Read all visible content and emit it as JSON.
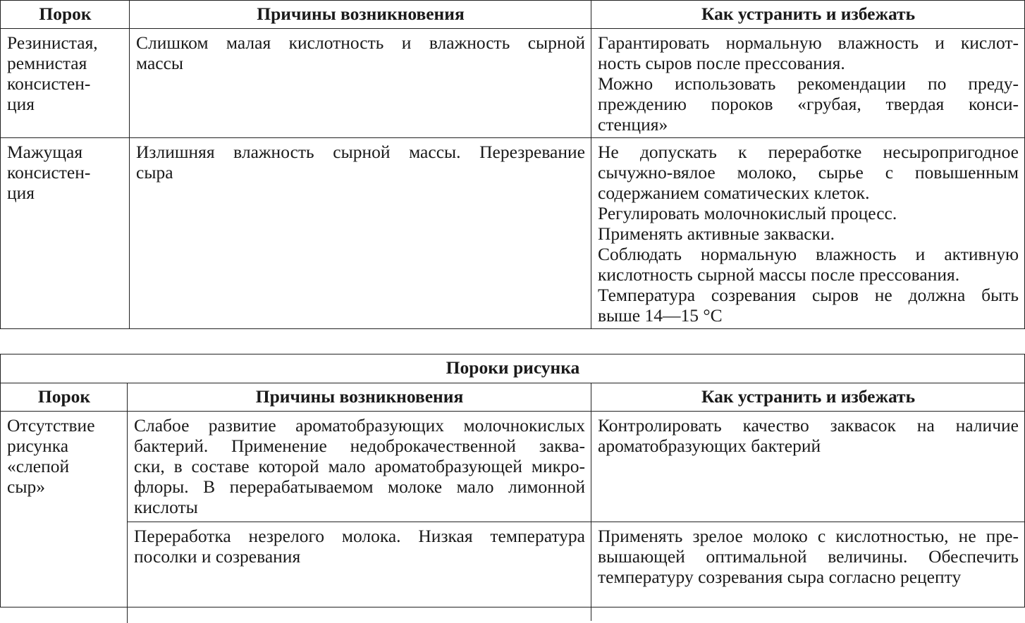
{
  "table1": {
    "headers": [
      "Порок",
      "Причины возникновения",
      "Как устранить и избежать"
    ],
    "rows": [
      {
        "defect": [
          [
            "Резинистая,"
          ],
          [
            "ремнистая"
          ],
          [
            "консистен-"
          ],
          [
            "ция"
          ]
        ],
        "causes": [
          [
            "Слишком малая кислотность и влажность сырной",
            "массы"
          ]
        ],
        "remedy": [
          [
            "Гарантировать нормальную влажность и кислот-",
            "ность сыров после прессования."
          ],
          [
            "Можно использовать рекомендации по преду-",
            "преждению пороков «грубая, твердая конси-",
            "стенция»"
          ]
        ]
      },
      {
        "defect": [
          [
            "Мажущая"
          ],
          [
            "консистен-"
          ],
          [
            "ция"
          ]
        ],
        "causes": [
          [
            "Излишняя влажность сырной массы. Перезревание",
            "сыра"
          ]
        ],
        "remedy": [
          [
            "Не допускать к переработке несыропригодное",
            "сычужно-вялое молоко, сырье с повышенным",
            "содержанием соматических клеток."
          ],
          [
            "Регулировать молочнокислый процесс."
          ],
          [
            "Применять активные закваски."
          ],
          [
            "Соблюдать нормальную влажность и активную",
            "кислотность сырной массы после прессования."
          ],
          [
            "Температура созревания сыров не должна быть",
            "выше 14—15 °C"
          ]
        ]
      }
    ]
  },
  "table2": {
    "title": "Пороки рисунка",
    "headers": [
      "Порок",
      "Причины возникновения",
      "Как устранить и избежать"
    ],
    "defect": [
      [
        "Отсутствие"
      ],
      [
        "рисунка"
      ],
      [
        "«слепой"
      ],
      [
        "сыр»"
      ]
    ],
    "rows": [
      {
        "causes": [
          [
            "Слабое развитие ароматобразующих молочнокислых",
            "бактерий. Применение недоброкачественной заква-",
            "ски, в составе которой мало ароматобразующей микро-",
            "флоры. В перерабатываемом молоке мало лимонной",
            "кислоты"
          ]
        ],
        "remedy": [
          [
            "Контролировать качество заквасок на наличие",
            "ароматобразующих бактерий"
          ]
        ]
      },
      {
        "causes": [
          [
            "Переработка незрелого молока. Низкая температура",
            "посолки и созревания"
          ]
        ],
        "remedy": [
          [
            "Применять зрелое молоко с кислотностью, не пре-",
            "вышающей оптимальной величины. Обеспечить",
            "температуру созревания сыра согласно рецепту"
          ]
        ]
      }
    ]
  }
}
